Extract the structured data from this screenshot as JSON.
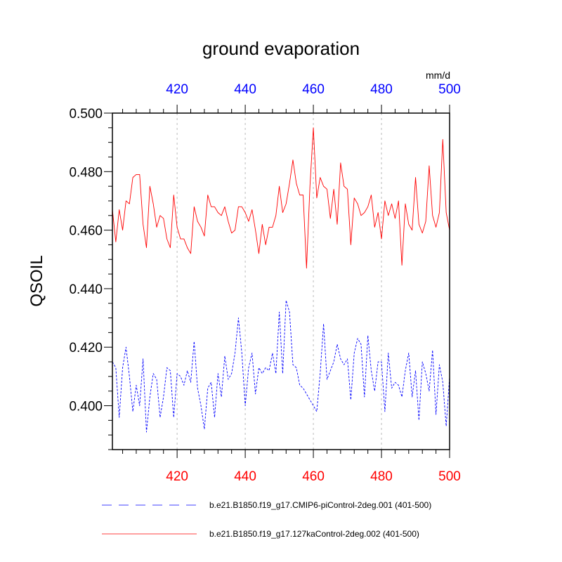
{
  "chart_data": {
    "type": "line",
    "title": "ground evaporation",
    "ylabel": "QSOIL",
    "units": "mm/d",
    "xlim": [
      401,
      500
    ],
    "ylim": [
      0.385,
      0.5
    ],
    "x_ticks": [
      420,
      440,
      460,
      480,
      500
    ],
    "x_tick_labels": [
      "420",
      "440",
      "460",
      "480",
      "500"
    ],
    "y_ticks": [
      0.4,
      0.42,
      0.44,
      0.46,
      0.48,
      0.5
    ],
    "y_tick_labels": [
      "0.400",
      "0.420",
      "0.440",
      "0.460",
      "0.480",
      "0.500"
    ],
    "colors": {
      "bottom_axis_labels": "#ff0000",
      "top_axis_labels": "#0000ff",
      "grid": "#bbbbbb"
    },
    "series": [
      {
        "name": "b.e21.B1850.f19_g17.CMIP6-piControl-2deg.001 (401-500)",
        "color": "#0000ff",
        "style": "dashed",
        "x_start": 401,
        "values": [
          0.415,
          0.413,
          0.396,
          0.413,
          0.42,
          0.41,
          0.398,
          0.407,
          0.4,
          0.416,
          0.391,
          0.403,
          0.411,
          0.409,
          0.396,
          0.403,
          0.413,
          0.412,
          0.396,
          0.411,
          0.41,
          0.407,
          0.412,
          0.408,
          0.422,
          0.406,
          0.4,
          0.392,
          0.406,
          0.408,
          0.396,
          0.411,
          0.403,
          0.417,
          0.409,
          0.411,
          0.418,
          0.43,
          0.418,
          0.4,
          0.413,
          0.418,
          0.404,
          0.413,
          0.411,
          0.413,
          0.412,
          0.418,
          0.411,
          0.432,
          0.411,
          0.436,
          0.432,
          0.414,
          0.413,
          0.407,
          0.406,
          0.404,
          0.402,
          0.4,
          0.398,
          0.411,
          0.428,
          0.409,
          0.412,
          0.415,
          0.421,
          0.416,
          0.414,
          0.416,
          0.402,
          0.418,
          0.423,
          0.421,
          0.403,
          0.424,
          0.412,
          0.405,
          0.415,
          0.415,
          0.398,
          0.418,
          0.406,
          0.408,
          0.407,
          0.403,
          0.412,
          0.418,
          0.403,
          0.412,
          0.395,
          0.415,
          0.411,
          0.405,
          0.419,
          0.397,
          0.414,
          0.408,
          0.393,
          0.41
        ]
      },
      {
        "name": "b.e21.B1850.f19_g17.127kaControl-2deg.002 (401-500)",
        "color": "#ff0000",
        "style": "solid",
        "x_start": 401,
        "values": [
          0.467,
          0.456,
          0.467,
          0.46,
          0.47,
          0.469,
          0.478,
          0.479,
          0.479,
          0.462,
          0.454,
          0.475,
          0.469,
          0.461,
          0.465,
          0.464,
          0.457,
          0.454,
          0.472,
          0.461,
          0.457,
          0.457,
          0.454,
          0.452,
          0.468,
          0.463,
          0.461,
          0.458,
          0.472,
          0.468,
          0.468,
          0.466,
          0.465,
          0.468,
          0.463,
          0.459,
          0.46,
          0.468,
          0.468,
          0.466,
          0.463,
          0.467,
          0.46,
          0.452,
          0.462,
          0.455,
          0.461,
          0.461,
          0.465,
          0.475,
          0.466,
          0.469,
          0.476,
          0.484,
          0.476,
          0.472,
          0.472,
          0.447,
          0.475,
          0.495,
          0.471,
          0.478,
          0.475,
          0.474,
          0.464,
          0.474,
          0.462,
          0.483,
          0.475,
          0.474,
          0.455,
          0.471,
          0.469,
          0.465,
          0.466,
          0.468,
          0.472,
          0.461,
          0.466,
          0.457,
          0.47,
          0.465,
          0.469,
          0.464,
          0.47,
          0.448,
          0.469,
          0.462,
          0.46,
          0.478,
          0.462,
          0.459,
          0.463,
          0.482,
          0.465,
          0.461,
          0.466,
          0.491,
          0.466,
          0.46
        ]
      }
    ]
  }
}
